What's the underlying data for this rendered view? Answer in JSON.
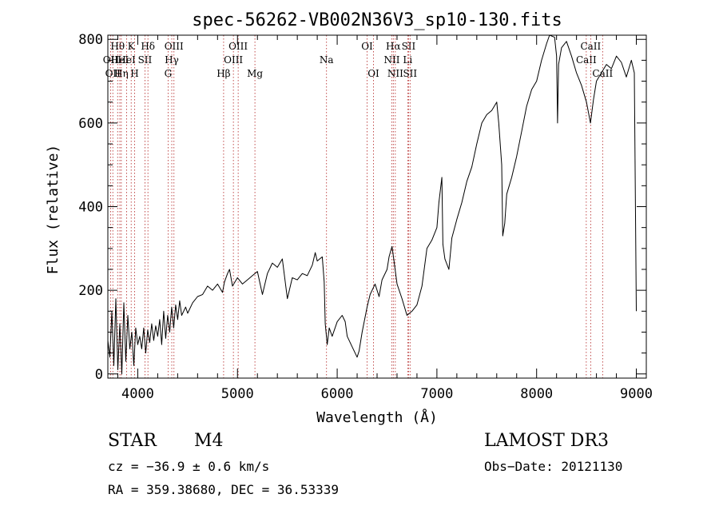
{
  "chart_data": {
    "type": "line",
    "title": "spec-56262-VB002N36V3_sp10-130.fits",
    "xlabel": "Wavelength (Å)",
    "ylabel": "Flux (relative)",
    "xlim": [
      3700,
      9100
    ],
    "ylim": [
      -10,
      810
    ],
    "x_ticks": [
      4000,
      5000,
      6000,
      7000,
      8000,
      9000
    ],
    "y_ticks": [
      0,
      200,
      400,
      600,
      800
    ],
    "line_color": "#000000",
    "marker_color": "#b22222",
    "series": [
      {
        "name": "spectrum",
        "points": [
          [
            3700,
            80
          ],
          [
            3720,
            40
          ],
          [
            3740,
            150
          ],
          [
            3760,
            20
          ],
          [
            3780,
            180
          ],
          [
            3800,
            10
          ],
          [
            3820,
            120
          ],
          [
            3840,
            0
          ],
          [
            3860,
            170
          ],
          [
            3880,
            30
          ],
          [
            3900,
            140
          ],
          [
            3920,
            60
          ],
          [
            3940,
            100
          ],
          [
            3960,
            20
          ],
          [
            3980,
            110
          ],
          [
            4000,
            70
          ],
          [
            4020,
            90
          ],
          [
            4040,
            60
          ],
          [
            4060,
            110
          ],
          [
            4080,
            50
          ],
          [
            4100,
            105
          ],
          [
            4120,
            75
          ],
          [
            4140,
            120
          ],
          [
            4160,
            80
          ],
          [
            4180,
            115
          ],
          [
            4200,
            90
          ],
          [
            4220,
            130
          ],
          [
            4240,
            70
          ],
          [
            4260,
            150
          ],
          [
            4280,
            85
          ],
          [
            4300,
            140
          ],
          [
            4320,
            100
          ],
          [
            4340,
            160
          ],
          [
            4360,
            110
          ],
          [
            4380,
            165
          ],
          [
            4400,
            130
          ],
          [
            4420,
            175
          ],
          [
            4440,
            140
          ],
          [
            4460,
            150
          ],
          [
            4480,
            160
          ],
          [
            4500,
            145
          ],
          [
            4550,
            170
          ],
          [
            4600,
            185
          ],
          [
            4650,
            190
          ],
          [
            4700,
            210
          ],
          [
            4750,
            200
          ],
          [
            4800,
            215
          ],
          [
            4850,
            195
          ],
          [
            4870,
            220
          ],
          [
            4900,
            240
          ],
          [
            4920,
            250
          ],
          [
            4950,
            210
          ],
          [
            5000,
            230
          ],
          [
            5050,
            215
          ],
          [
            5100,
            225
          ],
          [
            5150,
            235
          ],
          [
            5200,
            245
          ],
          [
            5250,
            190
          ],
          [
            5300,
            240
          ],
          [
            5350,
            265
          ],
          [
            5400,
            255
          ],
          [
            5450,
            275
          ],
          [
            5500,
            180
          ],
          [
            5550,
            230
          ],
          [
            5600,
            225
          ],
          [
            5650,
            240
          ],
          [
            5700,
            235
          ],
          [
            5750,
            260
          ],
          [
            5780,
            290
          ],
          [
            5800,
            270
          ],
          [
            5850,
            280
          ],
          [
            5870,
            220
          ],
          [
            5880,
            120
          ],
          [
            5900,
            70
          ],
          [
            5920,
            110
          ],
          [
            5950,
            90
          ],
          [
            6000,
            125
          ],
          [
            6050,
            140
          ],
          [
            6080,
            125
          ],
          [
            6100,
            90
          ],
          [
            6150,
            65
          ],
          [
            6200,
            40
          ],
          [
            6220,
            55
          ],
          [
            6250,
            100
          ],
          [
            6300,
            160
          ],
          [
            6330,
            190
          ],
          [
            6380,
            215
          ],
          [
            6420,
            185
          ],
          [
            6450,
            225
          ],
          [
            6500,
            250
          ],
          [
            6520,
            280
          ],
          [
            6550,
            305
          ],
          [
            6570,
            270
          ],
          [
            6600,
            215
          ],
          [
            6650,
            180
          ],
          [
            6700,
            140
          ],
          [
            6750,
            150
          ],
          [
            6800,
            165
          ],
          [
            6850,
            210
          ],
          [
            6900,
            300
          ],
          [
            6950,
            320
          ],
          [
            7000,
            350
          ],
          [
            7020,
            410
          ],
          [
            7050,
            470
          ],
          [
            7060,
            310
          ],
          [
            7080,
            275
          ],
          [
            7120,
            250
          ],
          [
            7150,
            325
          ],
          [
            7200,
            370
          ],
          [
            7250,
            410
          ],
          [
            7300,
            460
          ],
          [
            7350,
            495
          ],
          [
            7400,
            550
          ],
          [
            7450,
            600
          ],
          [
            7500,
            620
          ],
          [
            7550,
            630
          ],
          [
            7600,
            650
          ],
          [
            7620,
            600
          ],
          [
            7650,
            500
          ],
          [
            7660,
            330
          ],
          [
            7680,
            360
          ],
          [
            7700,
            430
          ],
          [
            7750,
            470
          ],
          [
            7800,
            520
          ],
          [
            7850,
            580
          ],
          [
            7900,
            640
          ],
          [
            7950,
            680
          ],
          [
            8000,
            700
          ],
          [
            8050,
            750
          ],
          [
            8100,
            790
          ],
          [
            8130,
            810
          ],
          [
            8180,
            805
          ],
          [
            8200,
            760
          ],
          [
            8210,
            600
          ],
          [
            8220,
            740
          ],
          [
            8250,
            780
          ],
          [
            8300,
            795
          ],
          [
            8350,
            760
          ],
          [
            8400,
            720
          ],
          [
            8450,
            690
          ],
          [
            8500,
            650
          ],
          [
            8540,
            600
          ],
          [
            8570,
            655
          ],
          [
            8600,
            700
          ],
          [
            8650,
            720
          ],
          [
            8700,
            740
          ],
          [
            8750,
            730
          ],
          [
            8800,
            760
          ],
          [
            8850,
            745
          ],
          [
            8900,
            710
          ],
          [
            8950,
            750
          ],
          [
            8980,
            720
          ],
          [
            9000,
            150
          ]
        ]
      }
    ],
    "line_markers": [
      {
        "wavelength": 3727,
        "label": "OII",
        "row": 2
      },
      {
        "wavelength": 3750,
        "label": "OII",
        "row": 3
      },
      {
        "wavelength": 3798,
        "label": "Hθ",
        "row": 1
      },
      {
        "wavelength": 3820,
        "label": "HeI",
        "row": 2
      },
      {
        "wavelength": 3835,
        "label": "Hη",
        "row": 3
      },
      {
        "wavelength": 3889,
        "label": "HeI",
        "row": 2
      },
      {
        "wavelength": 3934,
        "label": "K",
        "row": 1
      },
      {
        "wavelength": 3968,
        "label": "H",
        "row": 3
      },
      {
        "wavelength": 4072,
        "label": "SII",
        "row": 2
      },
      {
        "wavelength": 4102,
        "label": "Hδ",
        "row": 1
      },
      {
        "wavelength": 4304,
        "label": "G",
        "row": 3
      },
      {
        "wavelength": 4341,
        "label": "Hγ",
        "row": 2
      },
      {
        "wavelength": 4363,
        "label": "OIII",
        "row": 1
      },
      {
        "wavelength": 4861,
        "label": "Hβ",
        "row": 3
      },
      {
        "wavelength": 4959,
        "label": "OIII",
        "row": 2
      },
      {
        "wavelength": 5007,
        "label": "OIII",
        "row": 1
      },
      {
        "wavelength": 5175,
        "label": "Mg",
        "row": 3
      },
      {
        "wavelength": 5893,
        "label": "Na",
        "row": 2
      },
      {
        "wavelength": 6300,
        "label": "OI",
        "row": 1
      },
      {
        "wavelength": 6364,
        "label": "OI",
        "row": 3
      },
      {
        "wavelength": 6548,
        "label": "NII",
        "row": 2
      },
      {
        "wavelength": 6563,
        "label": "Hα",
        "row": 1
      },
      {
        "wavelength": 6583,
        "label": "NII",
        "row": 3
      },
      {
        "wavelength": 6707,
        "label": "Li",
        "row": 2
      },
      {
        "wavelength": 6716,
        "label": "SII",
        "row": 1
      },
      {
        "wavelength": 6731,
        "label": "SII",
        "row": 3
      },
      {
        "wavelength": 8498,
        "label": "CaII",
        "row": 2
      },
      {
        "wavelength": 8542,
        "label": "CaII",
        "row": 1
      },
      {
        "wavelength": 8662,
        "label": "CaII",
        "row": 3
      }
    ]
  },
  "info": {
    "object_class": "STAR",
    "subclass": "M4",
    "survey": "LAMOST DR3",
    "cz": "cz = −36.9 ± 0.6 km/s",
    "obs_date": "Obs−Date: 20121130",
    "coords": "RA = 359.38680, DEC =  36.53339"
  }
}
